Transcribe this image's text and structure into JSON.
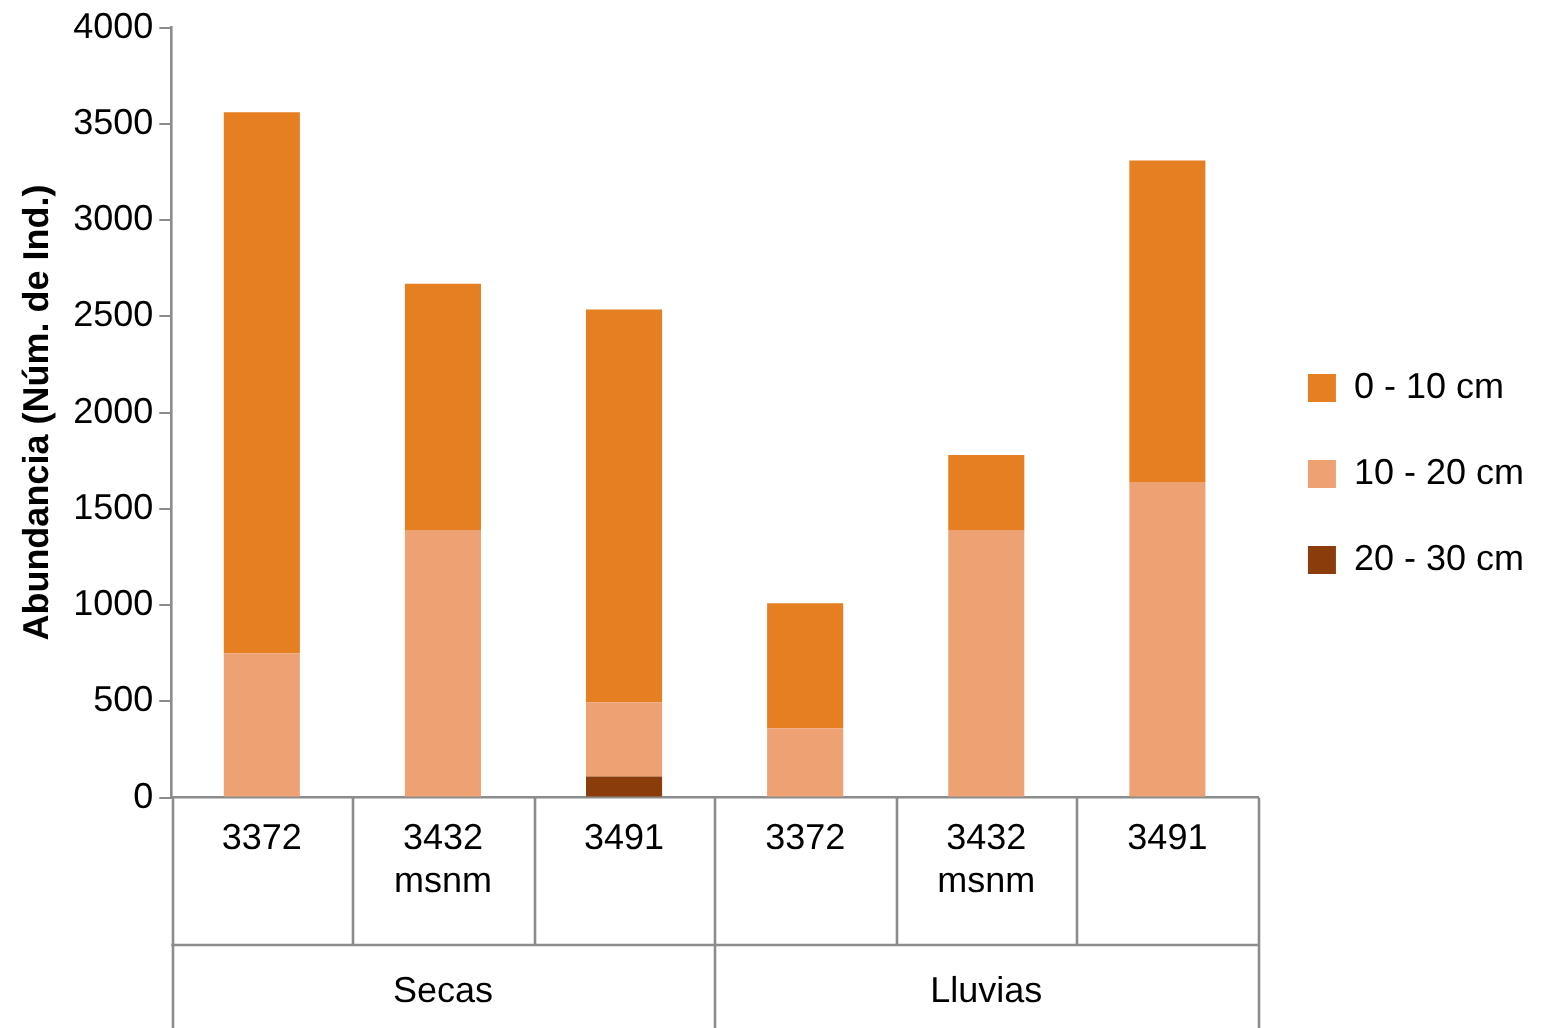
{
  "chart_data": {
    "type": "bar",
    "stacked": true,
    "ylabel": "Abundancia (Núm. de Ind.)",
    "categories": [
      "3372",
      "3432 msnm",
      "3491",
      "3372",
      "3432 msnm",
      "3491"
    ],
    "series": [
      {
        "name": "20 - 30 cm",
        "color": "#8a3c0a",
        "values": [
          0,
          0,
          110,
          0,
          0,
          0
        ]
      },
      {
        "name": "10 - 20 cm",
        "color": "#eea172",
        "values": [
          750,
          1390,
          385,
          360,
          1390,
          1640
        ]
      },
      {
        "name": "0 - 10 cm",
        "color": "#e67e22",
        "values": [
          2810,
          1280,
          2040,
          650,
          390,
          1670
        ]
      }
    ],
    "ylim": [
      0,
      4000
    ],
    "yticks": [
      0,
      500,
      1000,
      1500,
      2000,
      2500,
      3000,
      3500,
      4000
    ],
    "grid": false,
    "legend": "right",
    "annotations": [
      "Secas",
      "Lluvias"
    ]
  }
}
